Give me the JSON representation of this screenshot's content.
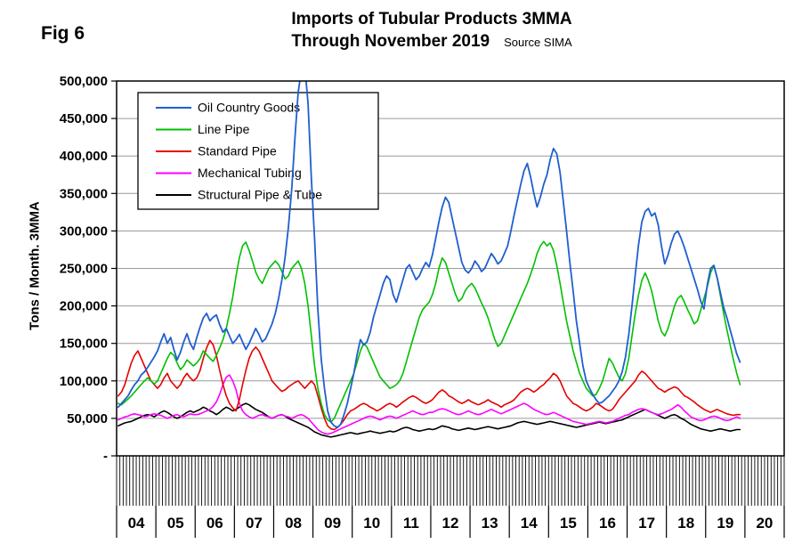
{
  "header": {
    "fig_label": "Fig 6",
    "title": "Imports of Tubular Products 3MMA",
    "subtitle": "Through November 2019",
    "source": "Source SIMA"
  },
  "chart_data": {
    "type": "line",
    "title": "Imports of Tubular Products 3MMA",
    "subtitle": "Through November 2019",
    "source": "Source SIMA",
    "ylabel": "Tons / Month. 3MMA",
    "ylim": [
      0,
      500000
    ],
    "ytick_interval": 50000,
    "ytick_labels": [
      "-",
      "50,000",
      "100,000",
      "150,000",
      "200,000",
      "250,000",
      "300,000",
      "350,000",
      "400,000",
      "450,000",
      "500,000"
    ],
    "grid": true,
    "legend_position": "upper-left",
    "x_axis": {
      "start": "2004-01",
      "data_end": "2019-11",
      "axis_end": "2020-12",
      "unit": "month",
      "year_labels": [
        "04",
        "05",
        "06",
        "07",
        "08",
        "09",
        "10",
        "11",
        "12",
        "13",
        "14",
        "15",
        "16",
        "17",
        "18",
        "19",
        "20"
      ]
    },
    "note": "Oil Country Goods peaks above 500,000 (off scale) in late 2008; values are 3-month moving averages estimated from the plot",
    "series": [
      {
        "name": "Oil Country Goods",
        "color": "#1f5fd0",
        "values": [
          65000,
          70000,
          75000,
          80000,
          88000,
          95000,
          100000,
          108000,
          112000,
          118000,
          125000,
          132000,
          140000,
          152000,
          163000,
          150000,
          158000,
          142000,
          128000,
          138000,
          152000,
          163000,
          150000,
          142000,
          158000,
          172000,
          184000,
          190000,
          180000,
          185000,
          188000,
          175000,
          165000,
          170000,
          160000,
          150000,
          155000,
          162000,
          152000,
          142000,
          150000,
          160000,
          170000,
          162000,
          152000,
          156000,
          166000,
          176000,
          190000,
          210000,
          235000,
          265000,
          305000,
          355000,
          425000,
          485000,
          515000,
          520000,
          470000,
          370000,
          290000,
          195000,
          130000,
          90000,
          60000,
          45000,
          40000,
          38000,
          42000,
          55000,
          70000,
          90000,
          110000,
          135000,
          155000,
          148000,
          152000,
          165000,
          185000,
          200000,
          215000,
          230000,
          240000,
          235000,
          215000,
          205000,
          220000,
          235000,
          250000,
          255000,
          245000,
          235000,
          240000,
          250000,
          258000,
          252000,
          268000,
          290000,
          312000,
          332000,
          345000,
          338000,
          318000,
          298000,
          278000,
          258000,
          248000,
          244000,
          250000,
          260000,
          254000,
          246000,
          250000,
          260000,
          270000,
          264000,
          256000,
          260000,
          270000,
          280000,
          300000,
          322000,
          342000,
          362000,
          380000,
          390000,
          372000,
          350000,
          332000,
          345000,
          362000,
          375000,
          395000,
          410000,
          403000,
          378000,
          340000,
          300000,
          258000,
          220000,
          180000,
          150000,
          120000,
          100000,
          90000,
          82000,
          75000,
          70000,
          72000,
          76000,
          80000,
          86000,
          92000,
          100000,
          112000,
          132000,
          162000,
          200000,
          242000,
          282000,
          312000,
          326000,
          330000,
          320000,
          324000,
          308000,
          280000,
          256000,
          268000,
          284000,
          296000,
          300000,
          290000,
          278000,
          264000,
          250000,
          236000,
          222000,
          206000,
          196000,
          228000,
          250000,
          254000,
          238000,
          218000,
          198000,
          184000,
          168000,
          152000,
          136000,
          125000
        ]
      },
      {
        "name": "Line Pipe",
        "color": "#00c000",
        "values": [
          70000,
          68000,
          72000,
          76000,
          80000,
          85000,
          90000,
          95000,
          100000,
          104000,
          100000,
          96000,
          100000,
          110000,
          120000,
          130000,
          138000,
          134000,
          124000,
          115000,
          120000,
          128000,
          124000,
          120000,
          124000,
          130000,
          140000,
          135000,
          130000,
          126000,
          134000,
          144000,
          155000,
          170000,
          190000,
          212000,
          240000,
          264000,
          280000,
          285000,
          274000,
          260000,
          245000,
          236000,
          230000,
          240000,
          250000,
          255000,
          260000,
          255000,
          246000,
          236000,
          240000,
          250000,
          255000,
          260000,
          250000,
          230000,
          200000,
          160000,
          120000,
          90000,
          70000,
          55000,
          48000,
          45000,
          50000,
          60000,
          70000,
          80000,
          90000,
          100000,
          110000,
          125000,
          140000,
          150000,
          145000,
          135000,
          125000,
          115000,
          105000,
          100000,
          95000,
          90000,
          92000,
          95000,
          100000,
          110000,
          125000,
          140000,
          155000,
          170000,
          185000,
          195000,
          200000,
          205000,
          215000,
          230000,
          250000,
          264000,
          258000,
          244000,
          230000,
          216000,
          206000,
          210000,
          220000,
          226000,
          230000,
          224000,
          214000,
          204000,
          195000,
          184000,
          170000,
          156000,
          146000,
          150000,
          160000,
          170000,
          180000,
          190000,
          200000,
          210000,
          220000,
          230000,
          242000,
          255000,
          270000,
          280000,
          286000,
          280000,
          284000,
          274000,
          254000,
          230000,
          205000,
          180000,
          160000,
          140000,
          125000,
          110000,
          100000,
          90000,
          85000,
          80000,
          82000,
          90000,
          100000,
          115000,
          130000,
          124000,
          114000,
          105000,
          100000,
          110000,
          130000,
          160000,
          190000,
          215000,
          234000,
          244000,
          234000,
          220000,
          200000,
          180000,
          166000,
          160000,
          170000,
          185000,
          200000,
          210000,
          214000,
          205000,
          195000,
          186000,
          176000,
          180000,
          195000,
          210000,
          225000,
          244000,
          254000,
          238000,
          214000,
          190000,
          168000,
          148000,
          128000,
          110000,
          95000
        ]
      },
      {
        "name": "Standard Pipe",
        "color": "#e60000",
        "values": [
          80000,
          85000,
          95000,
          110000,
          124000,
          134000,
          140000,
          130000,
          120000,
          110000,
          100000,
          95000,
          90000,
          95000,
          104000,
          110000,
          100000,
          95000,
          90000,
          95000,
          104000,
          110000,
          104000,
          100000,
          104000,
          114000,
          130000,
          144000,
          154000,
          148000,
          134000,
          114000,
          95000,
          80000,
          70000,
          64000,
          60000,
          75000,
          95000,
          114000,
          130000,
          140000,
          145000,
          140000,
          130000,
          120000,
          110000,
          100000,
          95000,
          90000,
          86000,
          88000,
          92000,
          95000,
          98000,
          100000,
          95000,
          90000,
          95000,
          100000,
          95000,
          80000,
          64000,
          50000,
          40000,
          36000,
          35000,
          38000,
          42000,
          48000,
          55000,
          60000,
          62000,
          65000,
          68000,
          70000,
          68000,
          65000,
          63000,
          60000,
          62000,
          65000,
          68000,
          70000,
          68000,
          65000,
          68000,
          72000,
          75000,
          78000,
          80000,
          78000,
          75000,
          72000,
          70000,
          72000,
          75000,
          80000,
          85000,
          88000,
          85000,
          80000,
          78000,
          75000,
          72000,
          70000,
          72000,
          75000,
          72000,
          70000,
          68000,
          70000,
          72000,
          75000,
          72000,
          70000,
          68000,
          65000,
          68000,
          70000,
          72000,
          75000,
          80000,
          85000,
          88000,
          90000,
          88000,
          85000,
          88000,
          92000,
          95000,
          100000,
          104000,
          110000,
          107000,
          100000,
          90000,
          80000,
          75000,
          70000,
          68000,
          65000,
          62000,
          60000,
          62000,
          65000,
          70000,
          68000,
          65000,
          62000,
          60000,
          62000,
          68000,
          75000,
          80000,
          85000,
          90000,
          95000,
          100000,
          108000,
          113000,
          110000,
          105000,
          100000,
          95000,
          90000,
          88000,
          85000,
          88000,
          90000,
          92000,
          90000,
          85000,
          80000,
          78000,
          75000,
          72000,
          68000,
          65000,
          62000,
          60000,
          58000,
          60000,
          62000,
          60000,
          58000,
          56000,
          55000,
          54000,
          55000,
          55000
        ]
      },
      {
        "name": "Mechanical Tubing",
        "color": "#ff00ff",
        "values": [
          48000,
          50000,
          52000,
          53000,
          55000,
          56000,
          55000,
          54000,
          52000,
          53000,
          55000,
          56000,
          55000,
          54000,
          52000,
          50000,
          52000,
          54000,
          55000,
          53000,
          52000,
          54000,
          56000,
          55000,
          55000,
          56000,
          58000,
          60000,
          62000,
          66000,
          72000,
          82000,
          95000,
          105000,
          108000,
          100000,
          88000,
          70000,
          60000,
          55000,
          52000,
          50000,
          52000,
          54000,
          55000,
          53000,
          52000,
          50000,
          52000,
          54000,
          55000,
          53000,
          52000,
          50000,
          52000,
          54000,
          55000,
          53000,
          50000,
          45000,
          40000,
          35000,
          32000,
          30000,
          29000,
          30000,
          32000,
          34000,
          36000,
          38000,
          40000,
          42000,
          44000,
          46000,
          48000,
          50000,
          52000,
          53000,
          52000,
          50000,
          48000,
          50000,
          52000,
          53000,
          52000,
          50000,
          52000,
          54000,
          56000,
          58000,
          60000,
          58000,
          56000,
          55000,
          56000,
          58000,
          58000,
          60000,
          62000,
          63000,
          62000,
          60000,
          58000,
          56000,
          55000,
          56000,
          58000,
          60000,
          58000,
          56000,
          55000,
          56000,
          58000,
          60000,
          62000,
          60000,
          58000,
          56000,
          58000,
          60000,
          62000,
          64000,
          66000,
          68000,
          70000,
          68000,
          65000,
          62000,
          60000,
          58000,
          56000,
          55000,
          56000,
          58000,
          56000,
          54000,
          52000,
          50000,
          48000,
          46000,
          45000,
          44000,
          43000,
          42000,
          43000,
          44000,
          45000,
          46000,
          45000,
          44000,
          45000,
          46000,
          48000,
          50000,
          52000,
          54000,
          55000,
          58000,
          60000,
          62000,
          63000,
          62000,
          60000,
          58000,
          56000,
          55000,
          56000,
          58000,
          60000,
          62000,
          65000,
          68000,
          65000,
          60000,
          56000,
          52000,
          50000,
          48000,
          47000,
          48000,
          50000,
          52000,
          53000,
          52000,
          50000,
          48000,
          47000,
          48000,
          50000,
          52000,
          50000
        ]
      },
      {
        "name": "Structural Pipe & Tube",
        "color": "#000000",
        "values": [
          40000,
          42000,
          44000,
          45000,
          46000,
          48000,
          50000,
          52000,
          54000,
          55000,
          54000,
          52000,
          55000,
          58000,
          60000,
          58000,
          55000,
          52000,
          50000,
          52000,
          55000,
          58000,
          60000,
          58000,
          60000,
          62000,
          65000,
          63000,
          60000,
          58000,
          55000,
          58000,
          62000,
          65000,
          63000,
          60000,
          62000,
          65000,
          68000,
          70000,
          68000,
          65000,
          62000,
          60000,
          58000,
          55000,
          52000,
          50000,
          52000,
          54000,
          55000,
          53000,
          50000,
          48000,
          46000,
          44000,
          42000,
          40000,
          38000,
          35000,
          32000,
          30000,
          28000,
          27000,
          26000,
          25000,
          26000,
          27000,
          28000,
          29000,
          30000,
          31000,
          30000,
          29000,
          30000,
          31000,
          32000,
          33000,
          32000,
          31000,
          30000,
          31000,
          32000,
          33000,
          32000,
          33000,
          35000,
          37000,
          38000,
          37000,
          35000,
          34000,
          33000,
          34000,
          35000,
          36000,
          35000,
          36000,
          38000,
          40000,
          39000,
          38000,
          36000,
          35000,
          34000,
          35000,
          36000,
          37000,
          36000,
          35000,
          36000,
          37000,
          38000,
          39000,
          38000,
          37000,
          36000,
          37000,
          38000,
          39000,
          40000,
          42000,
          44000,
          45000,
          46000,
          45000,
          44000,
          43000,
          42000,
          43000,
          44000,
          45000,
          46000,
          45000,
          44000,
          43000,
          42000,
          41000,
          40000,
          39000,
          38000,
          39000,
          40000,
          41000,
          42000,
          43000,
          44000,
          45000,
          44000,
          43000,
          44000,
          45000,
          46000,
          47000,
          48000,
          50000,
          52000,
          54000,
          56000,
          58000,
          60000,
          62000,
          60000,
          58000,
          56000,
          54000,
          52000,
          50000,
          52000,
          54000,
          55000,
          53000,
          50000,
          48000,
          45000,
          42000,
          40000,
          38000,
          36000,
          35000,
          34000,
          33000,
          34000,
          35000,
          36000,
          35000,
          34000,
          33000,
          34000,
          35000,
          35000
        ]
      }
    ]
  }
}
